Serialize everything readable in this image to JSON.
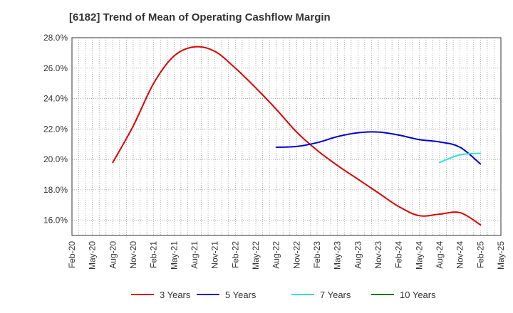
{
  "chart_data": {
    "type": "line",
    "title": "[6182]  Trend of Mean of Operating Cashflow Margin",
    "xlabel": "",
    "ylabel": "",
    "x_ticks": [
      "Feb-20",
      "May-20",
      "Aug-20",
      "Nov-20",
      "Feb-21",
      "May-21",
      "Aug-21",
      "Nov-21",
      "Feb-22",
      "May-22",
      "Aug-22",
      "Nov-22",
      "Feb-23",
      "May-23",
      "Aug-23",
      "Nov-23",
      "Feb-24",
      "May-24",
      "Aug-24",
      "Nov-24",
      "Feb-25",
      "May-25"
    ],
    "y_ticks": [
      "16.0%",
      "18.0%",
      "20.0%",
      "22.0%",
      "24.0%",
      "26.0%",
      "28.0%"
    ],
    "ylim": [
      15.0,
      28.0
    ],
    "grid": true,
    "legend_position": "bottom",
    "series": [
      {
        "name": "3 Years",
        "color": "#dd0000",
        "points": [
          [
            "Aug-20",
            19.8
          ],
          [
            "Nov-20",
            22.2
          ],
          [
            "Feb-21",
            25.0
          ],
          [
            "May-21",
            26.8
          ],
          [
            "Aug-21",
            27.4
          ],
          [
            "Nov-21",
            27.1
          ],
          [
            "Feb-22",
            26.0
          ],
          [
            "May-22",
            24.7
          ],
          [
            "Aug-22",
            23.3
          ],
          [
            "Nov-22",
            21.8
          ],
          [
            "Feb-23",
            20.6
          ],
          [
            "May-23",
            19.6
          ],
          [
            "Aug-23",
            18.7
          ],
          [
            "Nov-23",
            17.8
          ],
          [
            "Feb-24",
            16.9
          ],
          [
            "May-24",
            16.3
          ],
          [
            "Aug-24",
            16.4
          ],
          [
            "Nov-24",
            16.5
          ],
          [
            "Feb-25",
            15.7
          ]
        ]
      },
      {
        "name": "5 Years",
        "color": "#0000cc",
        "points": [
          [
            "Aug-22",
            20.8
          ],
          [
            "Nov-22",
            20.85
          ],
          [
            "Feb-23",
            21.1
          ],
          [
            "May-23",
            21.5
          ],
          [
            "Aug-23",
            21.75
          ],
          [
            "Nov-23",
            21.8
          ],
          [
            "Feb-24",
            21.6
          ],
          [
            "May-24",
            21.3
          ],
          [
            "Aug-24",
            21.15
          ],
          [
            "Nov-24",
            20.8
          ],
          [
            "Feb-25",
            19.7
          ]
        ]
      },
      {
        "name": "7 Years",
        "color": "#33dddd",
        "points": [
          [
            "Aug-24",
            19.8
          ],
          [
            "Nov-24",
            20.3
          ],
          [
            "Feb-25",
            20.4
          ]
        ]
      },
      {
        "name": "10 Years",
        "color": "#007700",
        "points": []
      }
    ]
  }
}
